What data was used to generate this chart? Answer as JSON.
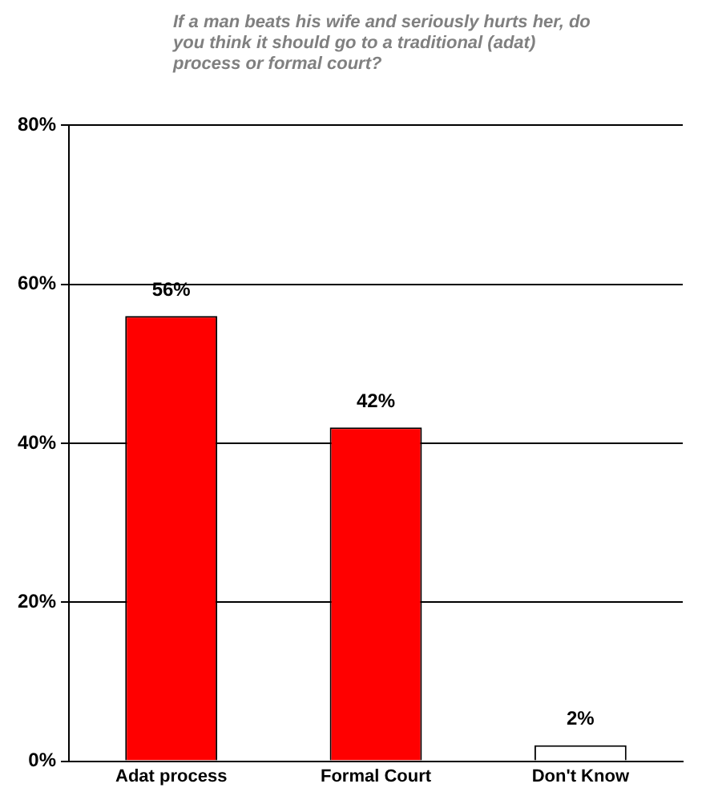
{
  "chart_data": {
    "type": "bar",
    "title": "If a man beats his wife and seriously hurts her, do you think it should go to a traditional (adat) process or formal court?",
    "categories": [
      "Adat process",
      "Formal Court",
      "Don't Know"
    ],
    "values": [
      56,
      42,
      2
    ],
    "colors": [
      "#ff0000",
      "#ff0000",
      "#ffffff"
    ],
    "value_labels": [
      "56%",
      "42%",
      "2%"
    ],
    "ylim": [
      0,
      80
    ],
    "yticks": [
      {
        "value": 0,
        "label": "0%"
      },
      {
        "value": 20,
        "label": "20%"
      },
      {
        "value": 40,
        "label": "40%"
      },
      {
        "value": 60,
        "label": "60%"
      },
      {
        "value": 80,
        "label": "80%"
      }
    ],
    "grid": "y",
    "legend": false
  }
}
